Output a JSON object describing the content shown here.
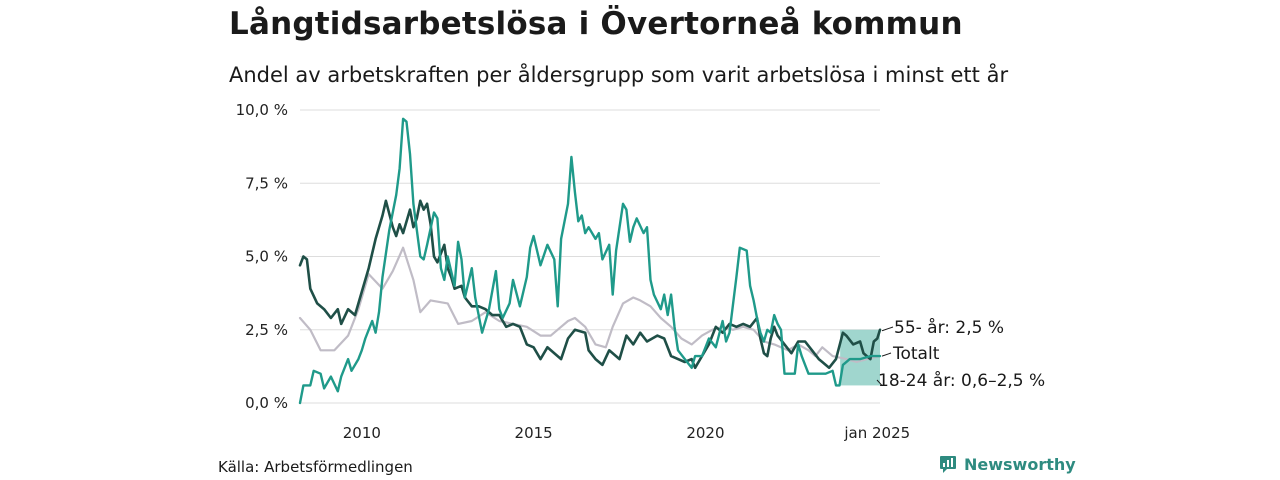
{
  "title": "Långtidsarbetslösa i Övertorneå kommun",
  "subtitle": "Andel av arbetskraften per åldersgrupp som varit arbetslösa i minst ett år",
  "source": "Källa: Arbetsförmedlingen",
  "brand": "Newsworthy",
  "colors": {
    "total": "#c0bcc6",
    "age55": "#1f4f47",
    "age1824": "#1f9a8a",
    "band": "#8fcfc5",
    "grid": "#dddddd"
  },
  "chart_data": {
    "type": "line",
    "title": "Långtidsarbetslösa i Övertorneå kommun",
    "xlabel": "",
    "ylabel": "",
    "xlim": [
      2008.2,
      2025.08
    ],
    "ylim": [
      0,
      10
    ],
    "x_ticks": [
      {
        "x": 2010,
        "label": "2010"
      },
      {
        "x": 2015,
        "label": "2015"
      },
      {
        "x": 2020,
        "label": "2020"
      },
      {
        "x": 2025,
        "label": "jan 2025"
      }
    ],
    "y_ticks": [
      {
        "y": 0,
        "label": "0,0 %"
      },
      {
        "y": 2.5,
        "label": "2,5 %"
      },
      {
        "y": 5,
        "label": "5,0 %"
      },
      {
        "y": 7.5,
        "label": "7,5 %"
      },
      {
        "y": 10,
        "label": "10,0 %"
      }
    ],
    "series": [
      {
        "name": "Totalt",
        "label": "Totalt",
        "points": [
          [
            2008.2,
            2.9
          ],
          [
            2008.5,
            2.5
          ],
          [
            2008.8,
            1.8
          ],
          [
            2009.2,
            1.8
          ],
          [
            2009.6,
            2.3
          ],
          [
            2009.9,
            3.2
          ],
          [
            2010.2,
            4.4
          ],
          [
            2010.6,
            3.9
          ],
          [
            2010.9,
            4.5
          ],
          [
            2011.2,
            5.3
          ],
          [
            2011.5,
            4.2
          ],
          [
            2011.7,
            3.1
          ],
          [
            2012.0,
            3.5
          ],
          [
            2012.5,
            3.4
          ],
          [
            2012.8,
            2.7
          ],
          [
            2013.2,
            2.8
          ],
          [
            2013.6,
            3.1
          ],
          [
            2014.0,
            2.8
          ],
          [
            2014.4,
            2.7
          ],
          [
            2014.8,
            2.6
          ],
          [
            2015.2,
            2.3
          ],
          [
            2015.5,
            2.3
          ],
          [
            2015.8,
            2.6
          ],
          [
            2016.0,
            2.8
          ],
          [
            2016.2,
            2.9
          ],
          [
            2016.5,
            2.6
          ],
          [
            2016.8,
            2.0
          ],
          [
            2017.1,
            1.9
          ],
          [
            2017.3,
            2.6
          ],
          [
            2017.6,
            3.4
          ],
          [
            2017.9,
            3.6
          ],
          [
            2018.1,
            3.5
          ],
          [
            2018.4,
            3.3
          ],
          [
            2018.7,
            2.9
          ],
          [
            2019.0,
            2.6
          ],
          [
            2019.3,
            2.2
          ],
          [
            2019.6,
            2.0
          ],
          [
            2019.9,
            2.3
          ],
          [
            2020.2,
            2.5
          ],
          [
            2020.5,
            2.6
          ],
          [
            2020.8,
            2.5
          ],
          [
            2021.1,
            2.6
          ],
          [
            2021.4,
            2.5
          ],
          [
            2021.7,
            2.1
          ],
          [
            2022.0,
            2.0
          ],
          [
            2022.4,
            1.8
          ],
          [
            2022.7,
            2.0
          ],
          [
            2023.0,
            1.8
          ],
          [
            2023.2,
            1.6
          ],
          [
            2023.4,
            1.9
          ],
          [
            2023.7,
            1.6
          ],
          [
            2024.1,
            1.5
          ],
          [
            2024.4,
            1.4
          ],
          [
            2024.7,
            1.5
          ],
          [
            2025.08,
            1.6
          ]
        ]
      },
      {
        "name": "55- år",
        "label": "55- år: 2,5 %",
        "points": [
          [
            2008.2,
            4.7
          ],
          [
            2008.3,
            5.0
          ],
          [
            2008.4,
            4.9
          ],
          [
            2008.5,
            3.9
          ],
          [
            2008.7,
            3.4
          ],
          [
            2008.9,
            3.2
          ],
          [
            2009.1,
            2.9
          ],
          [
            2009.3,
            3.2
          ],
          [
            2009.4,
            2.7
          ],
          [
            2009.6,
            3.2
          ],
          [
            2009.8,
            3.0
          ],
          [
            2010.0,
            3.8
          ],
          [
            2010.2,
            4.6
          ],
          [
            2010.4,
            5.6
          ],
          [
            2010.6,
            6.4
          ],
          [
            2010.7,
            6.9
          ],
          [
            2010.9,
            6.0
          ],
          [
            2011.0,
            5.7
          ],
          [
            2011.1,
            6.1
          ],
          [
            2011.2,
            5.8
          ],
          [
            2011.4,
            6.6
          ],
          [
            2011.5,
            6.0
          ],
          [
            2011.6,
            6.3
          ],
          [
            2011.7,
            6.9
          ],
          [
            2011.8,
            6.6
          ],
          [
            2011.9,
            6.8
          ],
          [
            2012.0,
            6.1
          ],
          [
            2012.1,
            5.0
          ],
          [
            2012.2,
            4.8
          ],
          [
            2012.4,
            5.4
          ],
          [
            2012.5,
            4.6
          ],
          [
            2012.6,
            4.3
          ],
          [
            2012.7,
            3.9
          ],
          [
            2012.9,
            4.0
          ],
          [
            2013.0,
            3.6
          ],
          [
            2013.2,
            3.3
          ],
          [
            2013.4,
            3.3
          ],
          [
            2013.6,
            3.2
          ],
          [
            2013.8,
            3.0
          ],
          [
            2014.0,
            3.0
          ],
          [
            2014.2,
            2.6
          ],
          [
            2014.4,
            2.7
          ],
          [
            2014.6,
            2.6
          ],
          [
            2014.8,
            2.0
          ],
          [
            2015.0,
            1.9
          ],
          [
            2015.2,
            1.5
          ],
          [
            2015.4,
            1.9
          ],
          [
            2015.6,
            1.7
          ],
          [
            2015.8,
            1.5
          ],
          [
            2016.0,
            2.2
          ],
          [
            2016.2,
            2.5
          ],
          [
            2016.5,
            2.4
          ],
          [
            2016.6,
            1.8
          ],
          [
            2016.8,
            1.5
          ],
          [
            2017.0,
            1.3
          ],
          [
            2017.2,
            1.8
          ],
          [
            2017.5,
            1.5
          ],
          [
            2017.7,
            2.3
          ],
          [
            2017.9,
            2.0
          ],
          [
            2018.1,
            2.4
          ],
          [
            2018.3,
            2.1
          ],
          [
            2018.6,
            2.3
          ],
          [
            2018.8,
            2.2
          ],
          [
            2019.0,
            1.6
          ],
          [
            2019.2,
            1.5
          ],
          [
            2019.4,
            1.4
          ],
          [
            2019.6,
            1.5
          ],
          [
            2019.7,
            1.2
          ],
          [
            2019.9,
            1.6
          ],
          [
            2020.1,
            2.0
          ],
          [
            2020.3,
            2.6
          ],
          [
            2020.5,
            2.4
          ],
          [
            2020.7,
            2.7
          ],
          [
            2020.9,
            2.6
          ],
          [
            2021.1,
            2.7
          ],
          [
            2021.3,
            2.6
          ],
          [
            2021.5,
            2.9
          ],
          [
            2021.6,
            2.2
          ],
          [
            2021.7,
            1.7
          ],
          [
            2021.8,
            1.6
          ],
          [
            2021.9,
            2.2
          ],
          [
            2022.0,
            2.6
          ],
          [
            2022.1,
            2.3
          ],
          [
            2022.3,
            2.0
          ],
          [
            2022.5,
            1.7
          ],
          [
            2022.7,
            2.1
          ],
          [
            2022.9,
            2.1
          ],
          [
            2023.1,
            1.8
          ],
          [
            2023.3,
            1.5
          ],
          [
            2023.4,
            1.4
          ],
          [
            2023.6,
            1.2
          ],
          [
            2023.8,
            1.5
          ],
          [
            2024.0,
            2.4
          ],
          [
            2024.1,
            2.3
          ],
          [
            2024.3,
            2.0
          ],
          [
            2024.5,
            2.1
          ],
          [
            2024.6,
            1.7
          ],
          [
            2024.8,
            1.5
          ],
          [
            2024.9,
            2.1
          ],
          [
            2025.0,
            2.2
          ],
          [
            2025.08,
            2.5
          ]
        ]
      },
      {
        "name": "18-24 år",
        "label": "18-24 år: 0,6–2,5 %",
        "points": [
          [
            2008.2,
            0.0
          ],
          [
            2008.3,
            0.6
          ],
          [
            2008.5,
            0.6
          ],
          [
            2008.6,
            1.1
          ],
          [
            2008.8,
            1.0
          ],
          [
            2008.9,
            0.5
          ],
          [
            2009.1,
            0.9
          ],
          [
            2009.3,
            0.4
          ],
          [
            2009.4,
            0.9
          ],
          [
            2009.6,
            1.5
          ],
          [
            2009.7,
            1.1
          ],
          [
            2009.9,
            1.5
          ],
          [
            2010.0,
            1.8
          ],
          [
            2010.1,
            2.2
          ],
          [
            2010.2,
            2.5
          ],
          [
            2010.3,
            2.8
          ],
          [
            2010.4,
            2.4
          ],
          [
            2010.5,
            3.1
          ],
          [
            2010.6,
            4.3
          ],
          [
            2010.8,
            5.9
          ],
          [
            2011.0,
            7.1
          ],
          [
            2011.1,
            8.0
          ],
          [
            2011.2,
            9.7
          ],
          [
            2011.3,
            9.6
          ],
          [
            2011.4,
            8.5
          ],
          [
            2011.5,
            6.8
          ],
          [
            2011.7,
            5.0
          ],
          [
            2011.8,
            4.9
          ],
          [
            2011.9,
            5.4
          ],
          [
            2012.1,
            6.5
          ],
          [
            2012.2,
            6.3
          ],
          [
            2012.3,
            4.6
          ],
          [
            2012.4,
            4.2
          ],
          [
            2012.5,
            5.0
          ],
          [
            2012.7,
            4.0
          ],
          [
            2012.8,
            5.5
          ],
          [
            2012.9,
            4.9
          ],
          [
            2013.0,
            3.6
          ],
          [
            2013.2,
            4.6
          ],
          [
            2013.3,
            3.6
          ],
          [
            2013.5,
            2.4
          ],
          [
            2013.7,
            3.2
          ],
          [
            2013.9,
            4.5
          ],
          [
            2014.0,
            3.2
          ],
          [
            2014.1,
            2.9
          ],
          [
            2014.3,
            3.4
          ],
          [
            2014.4,
            4.2
          ],
          [
            2014.6,
            3.3
          ],
          [
            2014.8,
            4.3
          ],
          [
            2014.9,
            5.3
          ],
          [
            2015.0,
            5.7
          ],
          [
            2015.2,
            4.7
          ],
          [
            2015.4,
            5.4
          ],
          [
            2015.6,
            4.9
          ],
          [
            2015.7,
            3.3
          ],
          [
            2015.8,
            5.6
          ],
          [
            2016.0,
            6.8
          ],
          [
            2016.1,
            8.4
          ],
          [
            2016.2,
            7.2
          ],
          [
            2016.3,
            6.2
          ],
          [
            2016.4,
            6.4
          ],
          [
            2016.5,
            5.8
          ],
          [
            2016.6,
            6.0
          ],
          [
            2016.7,
            5.8
          ],
          [
            2016.8,
            5.6
          ],
          [
            2016.9,
            5.8
          ],
          [
            2017.0,
            4.9
          ],
          [
            2017.2,
            5.4
          ],
          [
            2017.3,
            3.7
          ],
          [
            2017.4,
            5.2
          ],
          [
            2017.6,
            6.8
          ],
          [
            2017.7,
            6.6
          ],
          [
            2017.8,
            5.5
          ],
          [
            2017.9,
            6.0
          ],
          [
            2018.0,
            6.3
          ],
          [
            2018.2,
            5.8
          ],
          [
            2018.3,
            6.0
          ],
          [
            2018.4,
            4.2
          ],
          [
            2018.5,
            3.7
          ],
          [
            2018.7,
            3.2
          ],
          [
            2018.8,
            3.7
          ],
          [
            2018.9,
            3.0
          ],
          [
            2019.0,
            3.7
          ],
          [
            2019.1,
            2.6
          ],
          [
            2019.2,
            1.8
          ],
          [
            2019.4,
            1.5
          ],
          [
            2019.6,
            1.2
          ],
          [
            2019.7,
            1.6
          ],
          [
            2019.9,
            1.6
          ],
          [
            2020.0,
            1.9
          ],
          [
            2020.1,
            2.2
          ],
          [
            2020.3,
            1.9
          ],
          [
            2020.5,
            2.8
          ],
          [
            2020.6,
            2.1
          ],
          [
            2020.7,
            2.4
          ],
          [
            2020.9,
            4.3
          ],
          [
            2021.0,
            5.3
          ],
          [
            2021.2,
            5.2
          ],
          [
            2021.3,
            4.0
          ],
          [
            2021.4,
            3.5
          ],
          [
            2021.5,
            2.9
          ],
          [
            2021.6,
            2.4
          ],
          [
            2021.7,
            2.1
          ],
          [
            2021.8,
            2.5
          ],
          [
            2021.9,
            2.4
          ],
          [
            2022.0,
            3.0
          ],
          [
            2022.1,
            2.7
          ],
          [
            2022.2,
            2.5
          ],
          [
            2022.3,
            1.0
          ],
          [
            2022.5,
            1.0
          ],
          [
            2022.6,
            1.0
          ],
          [
            2022.7,
            2.0
          ],
          [
            2022.8,
            1.6
          ],
          [
            2022.9,
            1.3
          ],
          [
            2023.0,
            1.0
          ],
          [
            2023.5,
            1.0
          ],
          [
            2023.7,
            1.1
          ],
          [
            2023.8,
            0.6
          ],
          [
            2023.9,
            0.6
          ],
          [
            2024.0,
            1.3
          ],
          [
            2024.2,
            1.5
          ],
          [
            2024.5,
            1.5
          ],
          [
            2024.8,
            1.6
          ],
          [
            2025.08,
            1.6
          ]
        ]
      }
    ],
    "band": {
      "name": "18-24 år osäkerhetsintervall",
      "x_start": 2023.92,
      "x_end": 2025.08,
      "y_low": 0.6,
      "y_high": 2.5
    }
  }
}
